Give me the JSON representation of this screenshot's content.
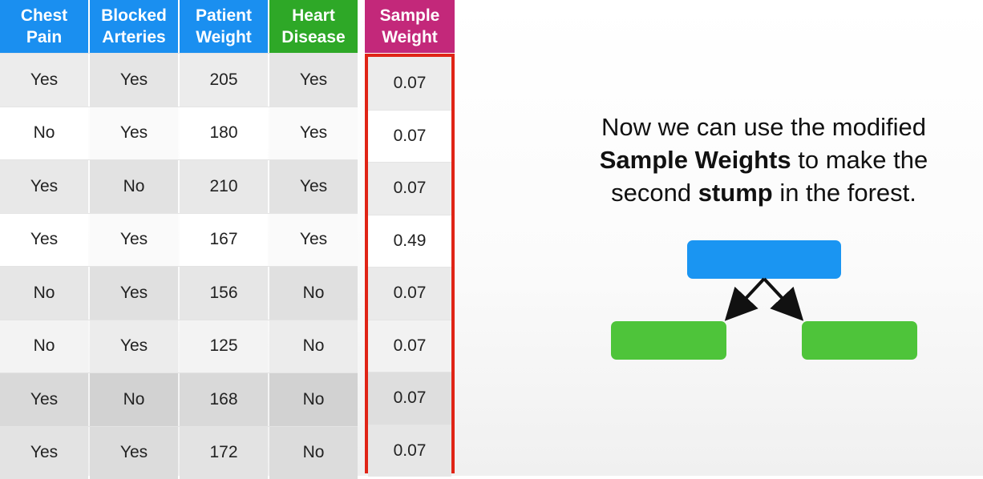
{
  "table": {
    "headers": [
      {
        "line1": "Chest",
        "line2": "Pain",
        "color": "#1a8ff0"
      },
      {
        "line1": "Blocked",
        "line2": "Arteries",
        "color": "#1a8ff0"
      },
      {
        "line1": "Patient",
        "line2": "Weight",
        "color": "#1a8ff0"
      },
      {
        "line1": "Heart",
        "line2": "Disease",
        "color": "#2ea827"
      }
    ],
    "rows": [
      [
        "Yes",
        "Yes",
        "205",
        "Yes"
      ],
      [
        "No",
        "Yes",
        "180",
        "Yes"
      ],
      [
        "Yes",
        "No",
        "210",
        "Yes"
      ],
      [
        "Yes",
        "Yes",
        "167",
        "Yes"
      ],
      [
        "No",
        "Yes",
        "156",
        "No"
      ],
      [
        "No",
        "Yes",
        "125",
        "No"
      ],
      [
        "Yes",
        "No",
        "168",
        "No"
      ],
      [
        "Yes",
        "Yes",
        "172",
        "No"
      ]
    ]
  },
  "sample_weight": {
    "header_line1": "Sample",
    "header_line2": "Weight",
    "header_color": "#c3287a",
    "highlight_color": "#e02416",
    "values": [
      "0.07",
      "0.07",
      "0.07",
      "0.49",
      "0.07",
      "0.07",
      "0.07",
      "0.07"
    ]
  },
  "message": {
    "part1": "Now we can use the modified",
    "bold1": "Sample Weights",
    "part2": "to make the second",
    "bold2": "stump",
    "part3": "in the forest."
  },
  "stump": {
    "root_color": "#1a95f2",
    "leaf_color": "#4ec43a"
  }
}
